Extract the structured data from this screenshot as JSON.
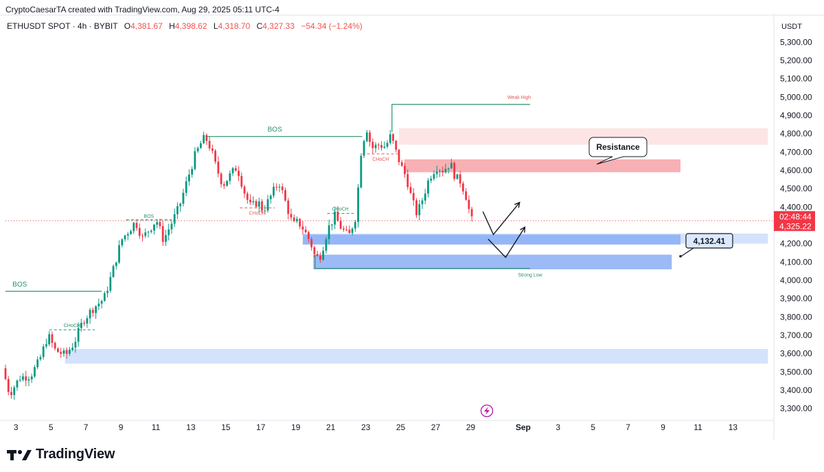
{
  "header": {
    "credit": "CryptoCaesarTA created with TradingView.com, Aug 29, 2025 05:11 UTC-4"
  },
  "legend": {
    "symbol": "ETHUSDT SPOT · 4h · BYBIT",
    "o_label": "O",
    "o_value": "4,381.67",
    "h_label": "H",
    "h_value": "4,398.62",
    "l_label": "L",
    "l_value": "4,318.70",
    "c_label": "C",
    "c_value": "4,327.33",
    "change": "−54.34 (−1.24%)"
  },
  "branding": {
    "logo_text": "TradingView"
  },
  "colors": {
    "up": "#089981",
    "down": "#f23645",
    "structure": "#2a8f6a",
    "choch_red": "#e05a5a",
    "demand_zone": "#cfe0fb",
    "demand_zone_strong": "#8aaef4",
    "supply_zone": "#fde2e2",
    "supply_zone_strong": "#f6a8ad",
    "price_tag": "#f23645"
  },
  "chart_data": {
    "type": "candlestick",
    "quote_currency": "USDT",
    "y_ticks": [
      "5,300.00",
      "5,200.00",
      "5,100.00",
      "5,000.00",
      "4,900.00",
      "4,800.00",
      "4,700.00",
      "4,600.00",
      "4,500.00",
      "4,400.00",
      "4,200.00",
      "4,100.00",
      "4,000.00",
      "3,900.00",
      "3,800.00",
      "3,700.00",
      "3,600.00",
      "3,500.00",
      "3,400.00",
      "3,300.00"
    ],
    "y_tick_values": [
      5300,
      5200,
      5100,
      5000,
      4900,
      4800,
      4700,
      4600,
      4500,
      4400,
      4200,
      4100,
      4000,
      3900,
      3800,
      3700,
      3600,
      3500,
      3400,
      3300
    ],
    "ylim": [
      3250,
      5350
    ],
    "x_labels": [
      "3",
      "5",
      "7",
      "9",
      "11",
      "13",
      "15",
      "17",
      "19",
      "21",
      "23",
      "25",
      "27",
      "29",
      "Sep",
      "3",
      "5",
      "7",
      "9",
      "11",
      "13"
    ],
    "x_label_days": [
      3,
      5,
      7,
      9,
      11,
      13,
      15,
      17,
      19,
      21,
      23,
      25,
      27,
      29,
      32,
      34,
      36,
      38,
      40,
      42,
      44
    ],
    "xlim": [
      2.4,
      46.3
    ],
    "last_price": {
      "value": 4325.22,
      "label": "4,325.22",
      "countdown": "02:48:44"
    },
    "waypoints": [
      [
        2.4,
        3520
      ],
      [
        2.8,
        3380
      ],
      [
        3.4,
        3470
      ],
      [
        4.0,
        3480
      ],
      [
        4.5,
        3560
      ],
      [
        5.0,
        3700
      ],
      [
        5.4,
        3620
      ],
      [
        6.0,
        3590
      ],
      [
        6.5,
        3660
      ],
      [
        7.0,
        3780
      ],
      [
        7.6,
        3850
      ],
      [
        8.2,
        3900
      ],
      [
        8.7,
        4050
      ],
      [
        9.2,
        4220
      ],
      [
        9.6,
        4270
      ],
      [
        10.0,
        4320
      ],
      [
        10.4,
        4230
      ],
      [
        10.8,
        4280
      ],
      [
        11.2,
        4330
      ],
      [
        11.6,
        4220
      ],
      [
        12.0,
        4300
      ],
      [
        12.5,
        4400
      ],
      [
        13.0,
        4560
      ],
      [
        13.4,
        4680
      ],
      [
        13.8,
        4760
      ],
      [
        14.0,
        4780
      ],
      [
        14.3,
        4720
      ],
      [
        14.6,
        4620
      ],
      [
        15.0,
        4520
      ],
      [
        15.3,
        4560
      ],
      [
        15.8,
        4620
      ],
      [
        16.3,
        4460
      ],
      [
        16.6,
        4400
      ],
      [
        17.0,
        4430
      ],
      [
        17.3,
        4380
      ],
      [
        17.8,
        4470
      ],
      [
        18.2,
        4540
      ],
      [
        18.6,
        4420
      ],
      [
        19.0,
        4300
      ],
      [
        19.3,
        4320
      ],
      [
        19.6,
        4280
      ],
      [
        20.0,
        4210
      ],
      [
        20.3,
        4120
      ],
      [
        20.6,
        4140
      ],
      [
        21.0,
        4280
      ],
      [
        21.4,
        4350
      ],
      [
        21.8,
        4280
      ],
      [
        22.2,
        4240
      ],
      [
        22.6,
        4350
      ],
      [
        22.9,
        4700
      ],
      [
        23.2,
        4840
      ],
      [
        23.5,
        4720
      ],
      [
        23.9,
        4740
      ],
      [
        24.3,
        4730
      ],
      [
        24.6,
        4790
      ],
      [
        24.9,
        4700
      ],
      [
        25.2,
        4620
      ],
      [
        25.5,
        4560
      ],
      [
        25.8,
        4440
      ],
      [
        26.1,
        4360
      ],
      [
        26.4,
        4440
      ],
      [
        26.8,
        4560
      ],
      [
        27.2,
        4620
      ],
      [
        27.6,
        4600
      ],
      [
        28.0,
        4640
      ],
      [
        28.3,
        4560
      ],
      [
        28.6,
        4540
      ],
      [
        28.9,
        4460
      ],
      [
        29.2,
        4327
      ]
    ],
    "zones": [
      {
        "x0": 24.9,
        "x1": 46.0,
        "y0": 4740,
        "y1": 4830,
        "kind": "supply"
      },
      {
        "x0": 25.2,
        "x1": 41.0,
        "y0": 4590,
        "y1": 4660,
        "kind": "supply-strong"
      },
      {
        "x0": 19.4,
        "x1": 46.0,
        "y0": 4200,
        "y1": 4255,
        "kind": "demand"
      },
      {
        "x0": 19.4,
        "x1": 41.0,
        "y0": 4195,
        "y1": 4250,
        "kind": "demand-strong"
      },
      {
        "x0": 20.0,
        "x1": 40.5,
        "y0": 4060,
        "y1": 4140,
        "kind": "demand-strong"
      },
      {
        "x0": 5.8,
        "x1": 46.0,
        "y0": 3545,
        "y1": 3625,
        "kind": "demand"
      }
    ],
    "structure_lines": [
      {
        "label": "BOS",
        "x0": 2.4,
        "x1": 7.9,
        "y": 3940,
        "label_x": 2.8
      },
      {
        "label": "BOS",
        "x0": 13.9,
        "x1": 22.8,
        "y": 4785,
        "label_x": 17.8
      },
      {
        "label": "BOS",
        "x0": 9.3,
        "x1": 11.9,
        "y": 4330,
        "label_x": 10.6,
        "dashed": true
      }
    ],
    "choch_marks": [
      {
        "label": "CHoCH",
        "x0": 4.9,
        "x1": 7.5,
        "y": 3730,
        "color": "green"
      },
      {
        "label": "CHoCH",
        "x0": 15.8,
        "x1": 17.8,
        "y": 4395,
        "color": "red"
      },
      {
        "label": "CHoCH",
        "x0": 20.8,
        "x1": 22.3,
        "y": 4365,
        "color": "green"
      },
      {
        "label": "CHoCH",
        "x0": 22.8,
        "x1": 24.9,
        "y": 4690,
        "color": "red"
      }
    ],
    "weak_high": {
      "label": "Weak High",
      "x0": 24.5,
      "x1": 32.4,
      "y": 4960
    },
    "strong_low": {
      "label": "Strong Low",
      "x0": 20.1,
      "x1": 32.4,
      "y": 4065
    },
    "callouts": [
      {
        "text": "Resistance"
      },
      {
        "text": "4,132.41"
      }
    ]
  }
}
